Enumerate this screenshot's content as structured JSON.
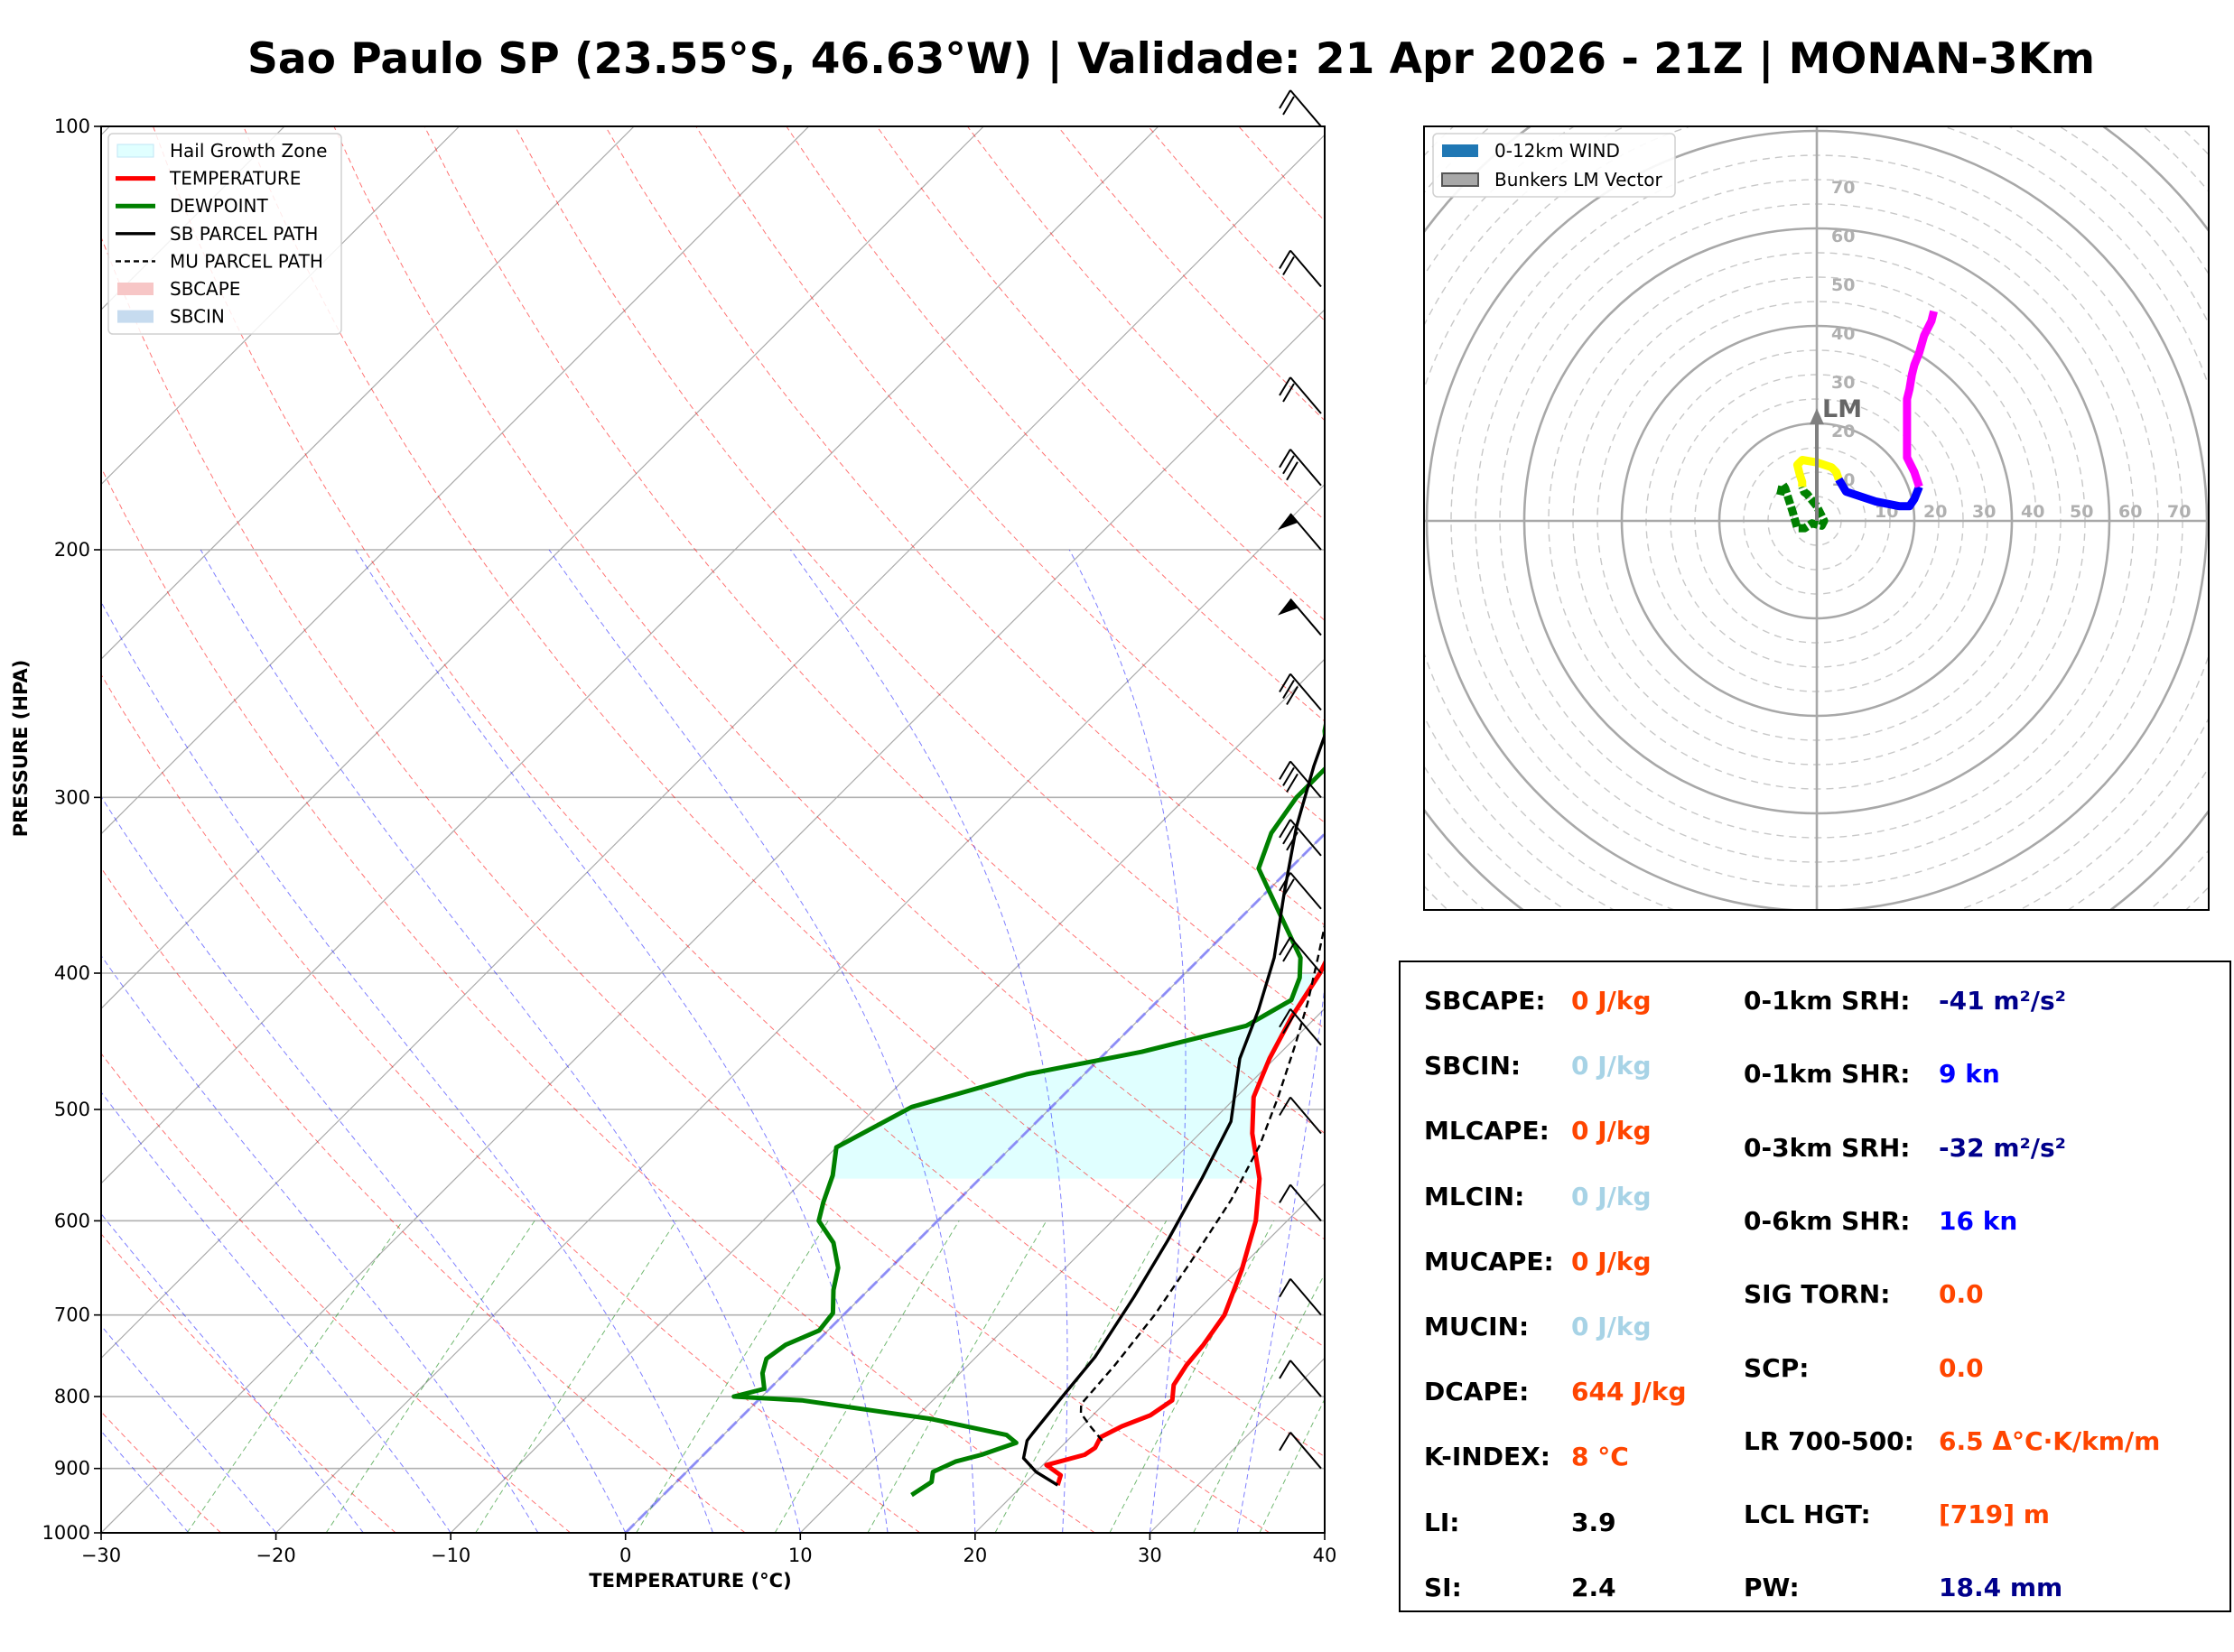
{
  "title": "Sao Paulo SP (23.55°S, 46.63°W) | Validade: 21 Apr 2026 - 21Z | MONAN-3Km",
  "chart_data": [
    {
      "type": "line",
      "subtype": "skew-t log-p",
      "xlabel": "TEMPERATURE (°C)",
      "ylabel": "PRESSURE (HPA)",
      "xlim": [
        -30,
        40
      ],
      "ylim": [
        1000,
        100
      ],
      "y_scale": "log",
      "x_ticks": [
        "−30",
        "−20",
        "−10",
        "0",
        "10",
        "20",
        "30",
        "40"
      ],
      "y_ticks": [
        "1000",
        "900",
        "800",
        "700",
        "600",
        "500",
        "400",
        "300",
        "200",
        "100"
      ],
      "grid": true,
      "legend_position": "top-left",
      "legend": [
        "Hail Growth Zone",
        "TEMPERATURE",
        "DEWPOINT",
        "SB PARCEL PATH",
        "MU PARCEL PATH",
        "SBCAPE",
        "SBCIN"
      ],
      "colors": {
        "temperature": "#ff0000",
        "dewpoint": "#008000",
        "sb_parcel": "#000000",
        "mu_parcel": "#000000",
        "hail_zone": "#e0ffff",
        "sbcape": "#f7c6c6",
        "sbcin": "#c6dbef"
      },
      "series": [
        {
          "name": "TEMPERATURE",
          "points": [
            [
              22,
              925
            ],
            [
              21.6,
              910
            ],
            [
              20.2,
              895
            ],
            [
              21.8,
              880
            ],
            [
              22,
              870
            ],
            [
              21.7,
              855
            ],
            [
              22.3,
              840
            ],
            [
              23.3,
              825
            ],
            [
              23.7,
              805
            ],
            [
              22.9,
              785
            ],
            [
              22.5,
              760
            ],
            [
              22.3,
              735
            ],
            [
              21.8,
              700
            ],
            [
              20.2,
              650
            ],
            [
              18.2,
              600
            ],
            [
              16,
              560
            ],
            [
              13,
              520
            ],
            [
              11,
              490
            ],
            [
              9.7,
              460
            ],
            [
              8.6,
              430
            ],
            [
              7.7,
              400
            ],
            [
              6.8,
              380
            ],
            [
              5.3,
              345
            ],
            [
              3.7,
              322
            ],
            [
              2.3,
              300
            ],
            [
              1.3,
              287
            ],
            [
              0,
              272
            ],
            [
              -1.8,
              254
            ],
            [
              -3.4,
              238
            ],
            [
              -4.7,
              224
            ],
            [
              -6.3,
              210
            ],
            [
              -7.2,
              197
            ],
            [
              -8.3,
              183
            ],
            [
              -9.1,
              171
            ],
            [
              -9.3,
              160
            ],
            [
              -9.3,
              150
            ],
            [
              -9.8,
              140
            ],
            [
              -10.3,
              130
            ],
            [
              -9.5,
              121
            ],
            [
              -7.8,
              112
            ],
            [
              -6.3,
              105
            ],
            [
              -5.3,
              100
            ]
          ]
        },
        {
          "name": "DEWPOINT",
          "points": [
            [
              14.2,
              940
            ],
            [
              14.6,
              920
            ],
            [
              14.1,
              905
            ],
            [
              14.8,
              890
            ],
            [
              15.9,
              880
            ],
            [
              17.2,
              863
            ],
            [
              16.2,
              852
            ],
            [
              11,
              830
            ],
            [
              2.5,
              805
            ],
            [
              -1.6,
              800
            ],
            [
              -0.3,
              790
            ],
            [
              -1.3,
              770
            ],
            [
              -1.9,
              752
            ],
            [
              -1.6,
              735
            ],
            [
              -0.5,
              718
            ],
            [
              -0.7,
              698
            ],
            [
              -2,
              672
            ],
            [
              -3,
              648
            ],
            [
              -4.7,
              622
            ],
            [
              -6.8,
              600
            ],
            [
              -7.6,
              582
            ],
            [
              -8.6,
              557
            ],
            [
              -10,
              532
            ],
            [
              -8,
              498
            ],
            [
              -3.3,
              472
            ],
            [
              2,
              455
            ],
            [
              6.5,
              436
            ],
            [
              7.6,
              418
            ],
            [
              6.8,
              403
            ],
            [
              5.7,
              390
            ],
            [
              1.3,
              358
            ],
            [
              -1.8,
              337
            ],
            [
              -3.1,
              318
            ],
            [
              -3.7,
              300
            ],
            [
              -3.7,
              285
            ],
            [
              -5.9,
              269
            ],
            [
              -7.4,
              255
            ],
            [
              -8.3,
              240
            ],
            [
              -8.8,
              225
            ],
            [
              -9.2,
              210
            ],
            [
              -10.1,
              195
            ],
            [
              -10.8,
              180
            ],
            [
              -12.8,
              170
            ],
            [
              -11.6,
              160
            ],
            [
              -10,
              150
            ],
            [
              -8.4,
              140
            ],
            [
              -7.5,
              131
            ],
            [
              -7.6,
              120
            ],
            [
              -7.7,
              110
            ],
            [
              -6.6,
              105
            ],
            [
              -5.9,
              100
            ]
          ]
        },
        {
          "name": "SB PARCEL PATH",
          "points": [
            [
              22,
              925
            ],
            [
              20,
              905
            ],
            [
              18.5,
              885
            ],
            [
              17.7,
              860
            ],
            [
              17.6,
              850
            ],
            [
              17.2,
              800
            ],
            [
              16.8,
              750
            ],
            [
              15.6,
              680
            ],
            [
              14.3,
              620
            ],
            [
              12.7,
              560
            ],
            [
              11.1,
              510
            ],
            [
              8,
              460
            ],
            [
              6.3,
              425
            ],
            [
              4.2,
              390
            ],
            [
              1,
              350
            ],
            [
              -2,
              315
            ],
            [
              -4.5,
              285
            ],
            [
              -7,
              255
            ],
            [
              -9.5,
              228
            ],
            [
              -11.9,
              200
            ],
            [
              -13.9,
              180
            ],
            [
              -16.1,
              163
            ],
            [
              -18.4,
              147
            ],
            [
              -20,
              135
            ],
            [
              -21.5,
              125
            ],
            [
              -23,
              117
            ],
            [
              -24.5,
              110
            ],
            [
              -26,
              105
            ],
            [
              -27,
              102
            ],
            [
              -28,
              100
            ]
          ]
        },
        {
          "name": "MU PARCEL PATH",
          "points": [
            [
              22,
              860
            ],
            [
              20.5,
              840
            ],
            [
              19.2,
              822
            ],
            [
              18.7,
              810
            ],
            [
              18.4,
              760
            ],
            [
              17.8,
              700
            ],
            [
              16.8,
              640
            ],
            [
              15.6,
              580
            ],
            [
              14.1,
              530
            ],
            [
              12.4,
              490
            ],
            [
              10.4,
              450
            ],
            [
              8.7,
              420
            ],
            [
              6.7,
              390
            ],
            [
              4.5,
              360
            ],
            [
              1.7,
              325
            ],
            [
              -0.7,
              300
            ],
            [
              -3.2,
              275
            ],
            [
              -5.5,
              255
            ],
            [
              -7.8,
              235
            ],
            [
              -10.1,
              212
            ],
            [
              -12.7,
              190
            ],
            [
              -14.9,
              170
            ],
            [
              -16.6,
              160
            ],
            [
              -17.9,
              150
            ],
            [
              -19.5,
              140
            ],
            [
              -20.9,
              130
            ],
            [
              -22.6,
              120
            ],
            [
              -23.8,
              112
            ],
            [
              -25.1,
              105
            ],
            [
              -26,
              100
            ]
          ]
        }
      ],
      "hail_growth_zone": {
        "p_top": 400,
        "p_bottom": 560
      }
    },
    {
      "type": "scatter",
      "subtype": "hodograph",
      "radial_ticks": [
        "10",
        "20",
        "30",
        "40",
        "50",
        "60",
        "70"
      ],
      "grid": true,
      "legend_position": "top-left",
      "legend": [
        "0-12km WIND",
        "Bunkers LM Vector"
      ],
      "lm_label": "LM",
      "lm_vector": [
        0,
        22
      ],
      "colors": {
        "0-3km": "#008000",
        "3-6km": "#ffff00",
        "6-9km": "#0000ff",
        "9-12km": "#ff00ff",
        "lm": "#808080",
        "legend_wind": "#1f77b4"
      },
      "segments": [
        {
          "points": [
            [
              -7.5,
              5.3
            ],
            [
              -7,
              7.5
            ],
            [
              -6.5,
              6.7
            ],
            [
              -5,
              2
            ],
            [
              -4,
              -1.5
            ],
            [
              -2.5,
              -1.5
            ],
            [
              -1,
              -0.5
            ],
            [
              1,
              -1
            ],
            [
              1.5,
              0
            ],
            [
              0,
              3
            ],
            [
              -2,
              5.5
            ],
            [
              -2.6,
              5.9
            ],
            [
              -3,
              7
            ]
          ]
        },
        {
          "points": [
            [
              -3,
              7
            ],
            [
              -3,
              8
            ],
            [
              -3.5,
              9.5
            ],
            [
              -4,
              11.5
            ],
            [
              -3,
              12.5
            ],
            [
              0,
              12
            ],
            [
              3,
              11
            ],
            [
              4,
              10
            ],
            [
              4.5,
              8.5
            ]
          ]
        },
        {
          "points": [
            [
              4.5,
              8.5
            ],
            [
              6,
              6
            ],
            [
              9,
              5
            ],
            [
              12,
              4
            ],
            [
              17,
              3
            ],
            [
              19,
              3
            ],
            [
              20,
              4.5
            ],
            [
              21,
              7
            ]
          ]
        },
        {
          "points": [
            [
              21,
              7
            ],
            [
              20,
              10
            ],
            [
              18.5,
              13
            ],
            [
              18.5,
              25
            ],
            [
              19,
              27
            ],
            [
              19.5,
              30
            ],
            [
              20,
              32
            ],
            [
              21,
              34.5
            ],
            [
              22,
              38
            ],
            [
              23.5,
              41
            ],
            [
              24,
              43
            ]
          ]
        }
      ]
    }
  ],
  "stats": {
    "left": [
      {
        "label": "SBCAPE:",
        "value": "0 J/kg",
        "color": "#ff4500"
      },
      {
        "label": "SBCIN:",
        "value": "0 J/kg",
        "color": "#a7d3e6"
      },
      {
        "label": "MLCAPE:",
        "value": "0 J/kg",
        "color": "#ff4500"
      },
      {
        "label": "MLCIN:",
        "value": "0 J/kg",
        "color": "#a7d3e6"
      },
      {
        "label": "MUCAPE:",
        "value": "0 J/kg",
        "color": "#ff4500"
      },
      {
        "label": "MUCIN:",
        "value": "0 J/kg",
        "color": "#a7d3e6"
      },
      {
        "label": "DCAPE:",
        "value": "644 J/kg",
        "color": "#ff4500"
      },
      {
        "label": "K-INDEX:",
        "value": "8 °C",
        "color": "#ff4500"
      },
      {
        "label": "LI:",
        "value": "3.9",
        "color": "#000000"
      },
      {
        "label": "SI:",
        "value": "2.4",
        "color": "#000000"
      }
    ],
    "right": [
      {
        "label": "0-1km SRH:",
        "value": "-41 m²/s²",
        "color": "#00008b"
      },
      {
        "label": "0-1km SHR:",
        "value": "9 kn",
        "color": "#0000ff"
      },
      {
        "label": "0-3km SRH:",
        "value": "-32 m²/s²",
        "color": "#00008b"
      },
      {
        "label": "0-6km SHR:",
        "value": "16 kn",
        "color": "#0000ff"
      },
      {
        "label": "SIG TORN:",
        "value": "0.0",
        "color": "#ff4500"
      },
      {
        "label": "SCP:",
        "value": "0.0",
        "color": "#ff4500"
      },
      {
        "label": "LR 700-500:",
        "value": "6.5 Δ°C·K/km/m",
        "color": "#ff4500"
      },
      {
        "label": "LCL HGT:",
        "value": "[719] m",
        "color": "#ff4500"
      },
      {
        "label": "PW:",
        "value": "18.4 mm",
        "color": "#00008b"
      }
    ]
  }
}
